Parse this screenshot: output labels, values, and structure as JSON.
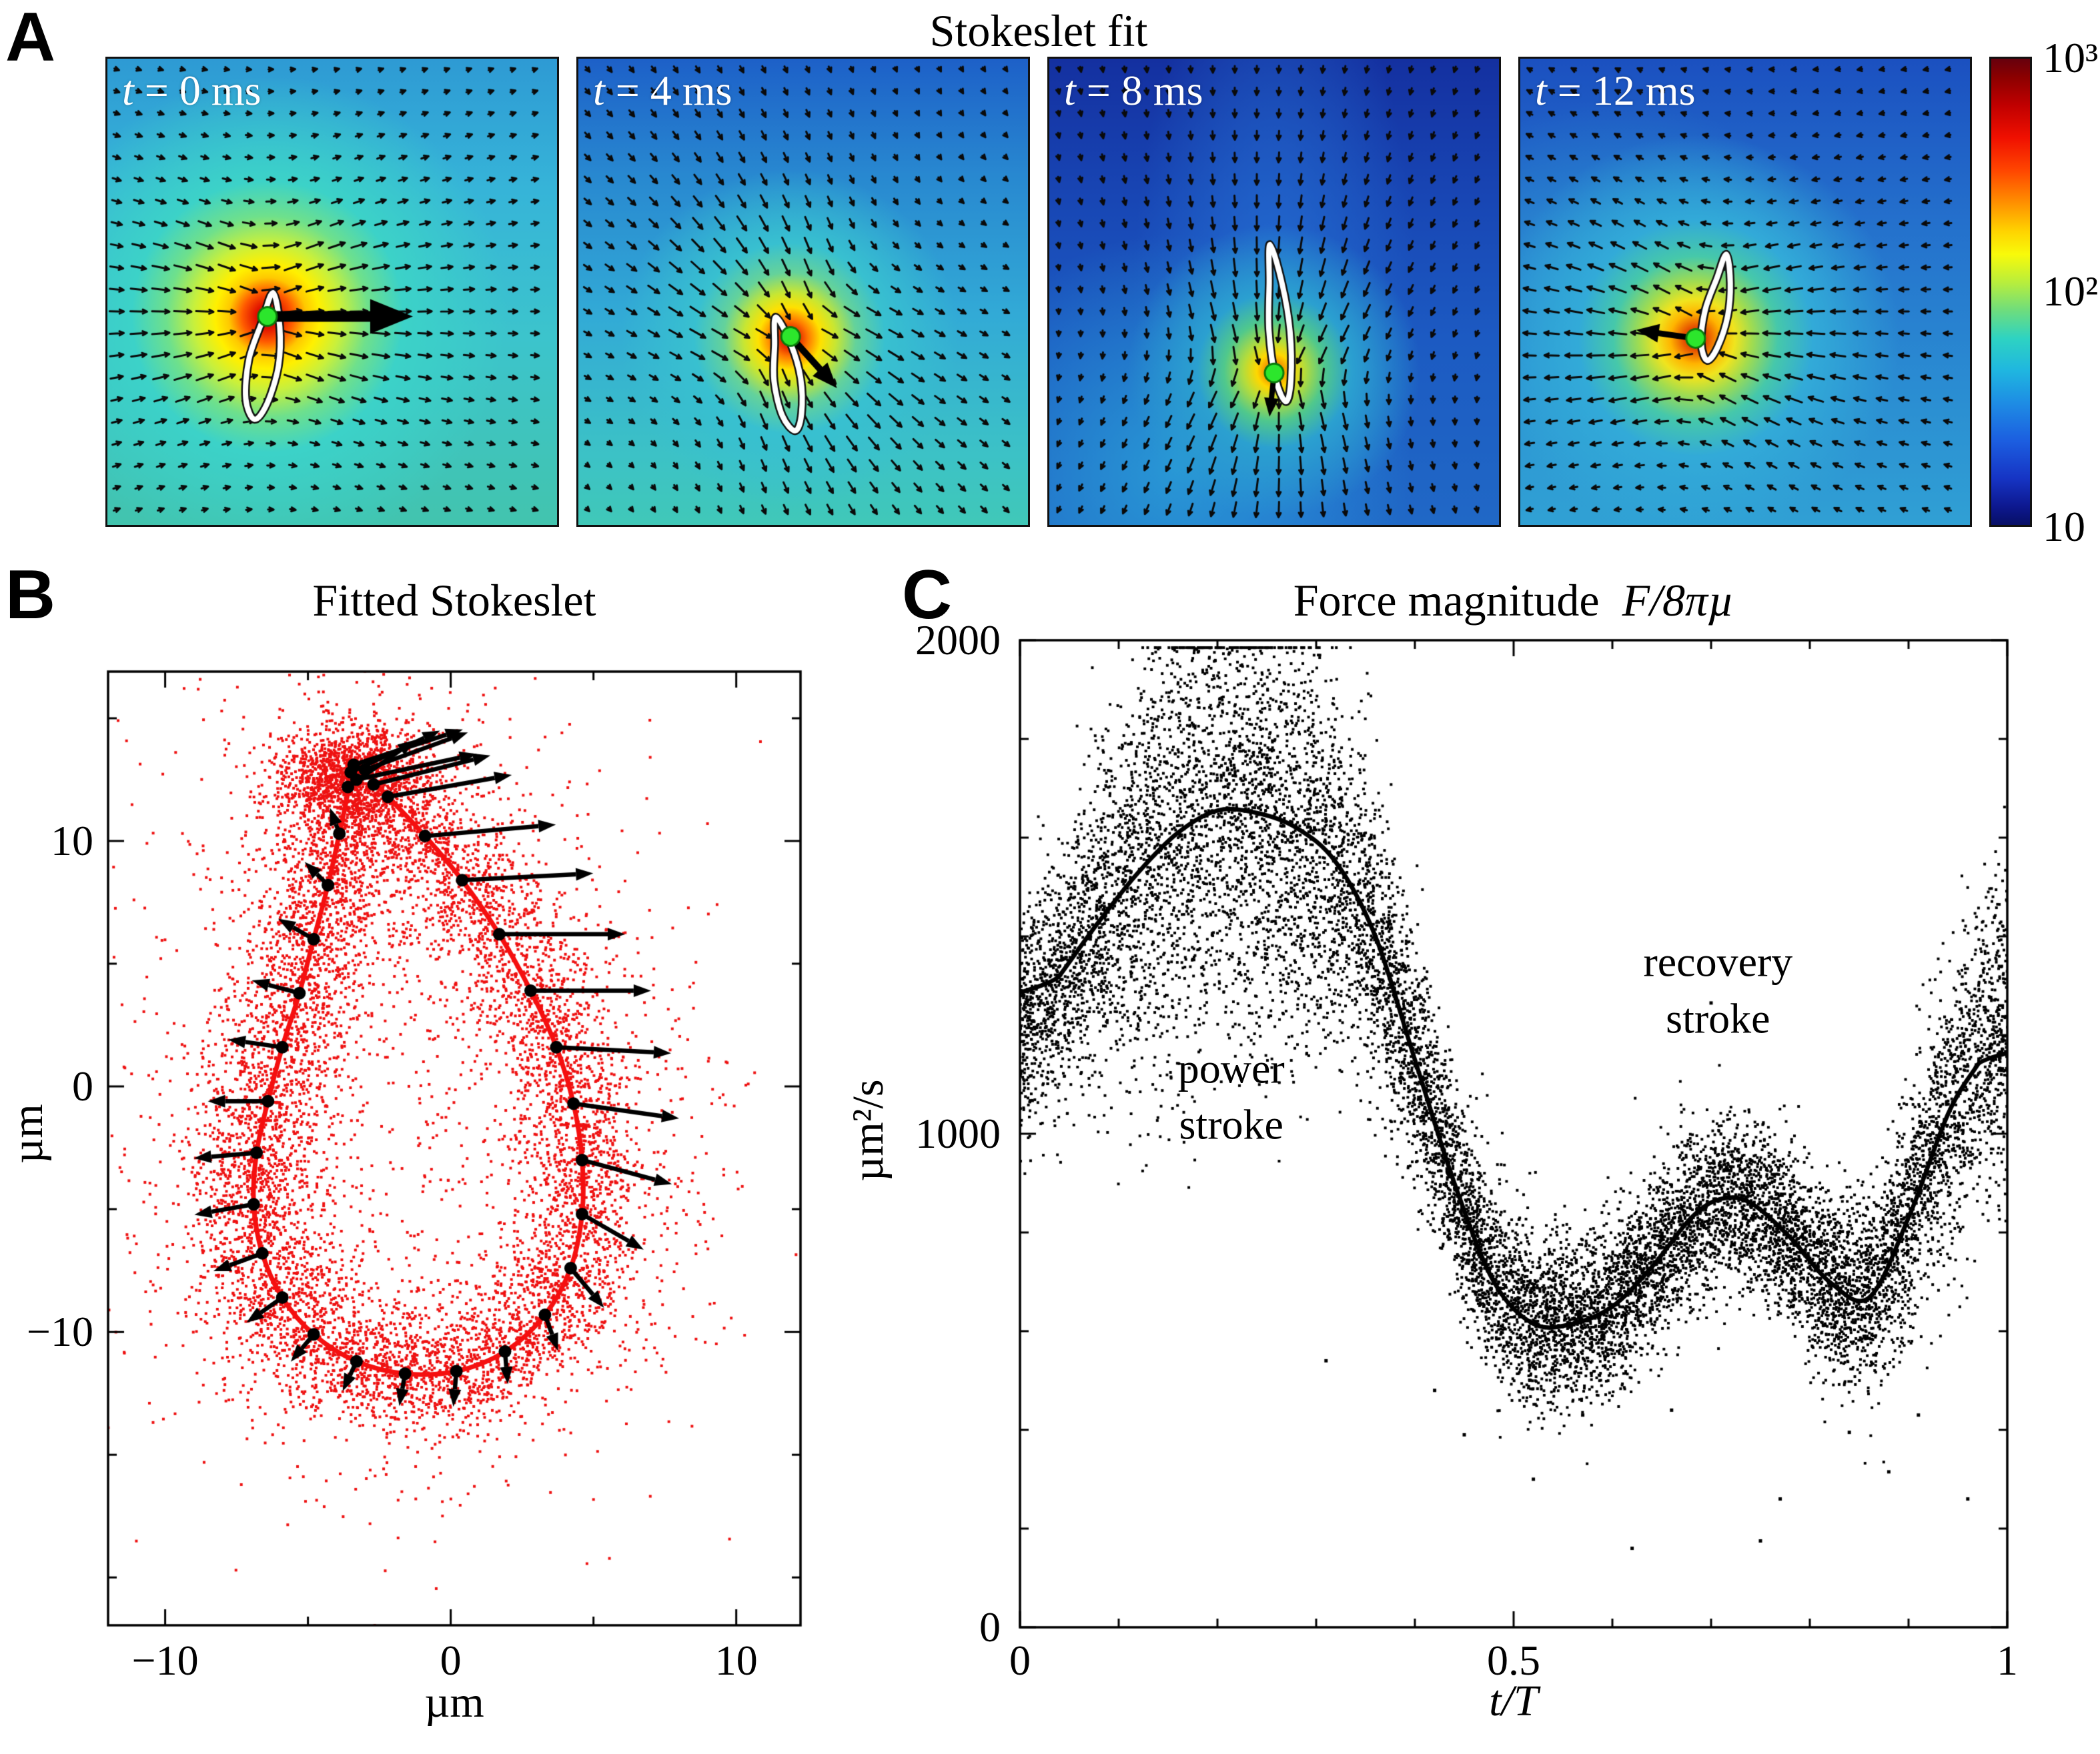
{
  "panel_a": {
    "label": "A",
    "title": "Stokeslet fit",
    "tiles": [
      {
        "t": "t",
        "rest": " = 0 ms",
        "bg": "radial-gradient(circle at 35.6% 55.3%, #a00000 0%, #e01000 3%, #ff5a00 6.5%, #ffc800 10%, #fff000 13.5%, #c8f03c 19%, #6ee08c 26%, #3cd2c8 35%, rgba(53,175,216,0) 62%), linear-gradient(180deg, #2e9ad4 0%, #36b4d8 28%, #3cc4cc 60%, #42c4ae 100%)"
      },
      {
        "t": "t",
        "rest": " = 4 ms",
        "bg": "radial-gradient(circle at 47% 60%, #b40000 0%, #e62800 2.5%, #ff7800 5%, #ffe100 8.5%, #c8e632 12.5%, #64d29b 18%, #38c0d0 26%, rgba(48,155,214,0) 46%), linear-gradient(180deg, #1d60c8 0%, #2888d0 25%, #32aad6 55%, #3cc2c6 85%, #40c8b8 100%)"
      },
      {
        "t": "t",
        "rest": " = 8 ms",
        "bg": "radial-gradient(circle at 50% 67%, #c83c00 0%, #f08c00 2%, #ffd700 4.5%, #b4dc3c 8%, #50c88c 13%, #2ba0d0 20%, rgba(32,110,200,0) 38%), radial-gradient(circle at 28% 88%, rgba(42,160,216,0.85) 0%, rgba(42,160,216,0) 45%), radial-gradient(45% 120% at 50% 55%, rgba(36,110,210,0.9) 0%, rgba(36,110,210,0) 70%), linear-gradient(180deg, #1430a0 0%, #1846b4 30%, #1c5ac2 60%, #2068c6 100%)"
      },
      {
        "t": "t",
        "rest": " = 12 ms",
        "bg": "radial-gradient(circle at 39% 60%, #be1400 0%, #e65000 3%, #ffb400 6.5%, #f0e41e 10%, #a0dc50 14.5%, #46c8aa 21%, #32aad8 30%, rgba(42,140,210,0) 52%), radial-gradient(circle at 22% 58%, rgba(50,170,215,0.7) 0%, rgba(50,170,215,0) 52%), linear-gradient(180deg, #1b50c0 0%, #2470cc 35%, #2a8cd2 70%, #30a0d4 100%)"
      }
    ],
    "colorbar": {
      "labels": [
        "10³",
        "10²",
        "10"
      ],
      "css": "linear-gradient(180deg,#66000d 0%,#8c0000 4%,#c00000 10%,#f01000 17%,#ff4600 24%,#ff9100 31%,#ffd300 37%,#f8fa0a 42%,#b8ee3c 48%,#6edd7d 54%,#2ed3c2 60%,#1fb6e0 67%,#1e8ce4 74%,#1c5ee0 82%,#1634c4 90%,#0d1890 96%,#070f66 100%)"
    }
  },
  "panel_b": {
    "label": "B",
    "title": "Fitted Stokeslet",
    "xlabel": "µm",
    "ylabel": "µm"
  },
  "panel_c": {
    "label": "C",
    "title_text": "Force magnitude",
    "title_math": "F/8πµ",
    "xlabel_math": "t/T",
    "ylabel": "µm²/s"
  },
  "chart_data": [
    {
      "id": "panel_a",
      "type": "heatmap",
      "title": "Stokeslet fit",
      "subtype": "velocity field magnitude (jet colormap, log scale) with quiver arrows",
      "colorbar": {
        "scale": "log",
        "min": 10,
        "max": 1000,
        "tick_labels": [
          "10³",
          "10²",
          "10"
        ]
      },
      "panels": [
        {
          "label": "t = 0 ms",
          "force_dir_deg": 0,
          "core_frac": [
            0.356,
            0.553
          ],
          "big_arrow": {
            "len": 150,
            "lw": 16,
            "head_l": 64,
            "head_w": 52
          },
          "outline": {
            "cx": 234,
            "cy": 452,
            "sx": 52,
            "sy": 102,
            "rot": 8
          }
        },
        {
          "label": "t = 4 ms",
          "force_dir_deg": 48,
          "core_frac": [
            0.472,
            0.596
          ],
          "big_arrow": {
            "len": 62,
            "lw": 10,
            "head_l": 38,
            "head_w": 30
          },
          "outline": {
            "cx": 312,
            "cy": 478,
            "sx": 46,
            "sy": 92,
            "rot": -10
          }
        },
        {
          "label": "t = 8 ms",
          "force_dir_deg": 96,
          "core_frac": [
            0.5,
            0.674
          ],
          "big_arrow": {
            "len": 34,
            "lw": 8,
            "head_l": 28,
            "head_w": 22
          },
          "outline": {
            "cx": 344,
            "cy": 404,
            "sx": 36,
            "sy": 126,
            "rot": -6
          }
        },
        {
          "label": "t = 12 ms",
          "force_dir_deg": 188,
          "core_frac": [
            0.39,
            0.6
          ],
          "big_arrow": {
            "len": 52,
            "lw": 9,
            "head_l": 34,
            "head_w": 28
          },
          "outline": {
            "cx": 294,
            "cy": 378,
            "sx": 40,
            "sy": 86,
            "rot": 10
          }
        }
      ]
    },
    {
      "id": "panel_b",
      "type": "scatter",
      "title": "Fitted Stokeslet",
      "xlabel": "µm",
      "ylabel": "µm",
      "xlim": [
        -12,
        12.25
      ],
      "ylim": [
        -21.95,
        16.9
      ],
      "xticks": {
        "major": [
          -10,
          0,
          10
        ],
        "labels": [
          "−10",
          "0",
          "10"
        ],
        "minor": [
          -5,
          5
        ]
      },
      "yticks": {
        "major": [
          -10,
          0,
          10
        ],
        "labels": [
          "−10",
          "0",
          "10"
        ],
        "minor": [
          -20,
          -15,
          -5,
          5,
          15
        ]
      },
      "scatter_color": "#ee1111",
      "curve_color": "#f50f0f",
      "n_points": 9000,
      "loop_xy": [
        [
          -3.5,
          13.3
        ],
        [
          -2.2,
          11.8
        ],
        [
          -0.9,
          10.2
        ],
        [
          0.4,
          8.4
        ],
        [
          1.7,
          6.2
        ],
        [
          2.8,
          3.9
        ],
        [
          3.7,
          1.6
        ],
        [
          4.3,
          -0.7
        ],
        [
          4.6,
          -3.0
        ],
        [
          4.6,
          -5.2
        ],
        [
          4.2,
          -7.4
        ],
        [
          3.3,
          -9.3
        ],
        [
          1.9,
          -10.8
        ],
        [
          0.2,
          -11.6
        ],
        [
          -1.6,
          -11.7
        ],
        [
          -3.3,
          -11.2
        ],
        [
          -4.8,
          -10.1
        ],
        [
          -5.9,
          -8.6
        ],
        [
          -6.6,
          -6.8
        ],
        [
          -6.9,
          -4.8
        ],
        [
          -6.8,
          -2.7
        ],
        [
          -6.4,
          -0.6
        ],
        [
          -5.9,
          1.6
        ],
        [
          -5.3,
          3.8
        ],
        [
          -4.8,
          6.0
        ],
        [
          -4.3,
          8.2
        ],
        [
          -3.9,
          10.3
        ],
        [
          -3.6,
          12.0
        ]
      ],
      "arrows": [
        [
          -2.2,
          11.8,
          10,
          4.6
        ],
        [
          -0.9,
          10.2,
          5,
          4.8
        ],
        [
          0.4,
          8.4,
          3,
          4.8
        ],
        [
          1.7,
          6.2,
          0,
          4.6
        ],
        [
          2.8,
          3.9,
          0,
          4.4
        ],
        [
          3.7,
          1.6,
          -3,
          4.2
        ],
        [
          4.3,
          -0.7,
          -8,
          3.9
        ],
        [
          4.6,
          -3.0,
          -15,
          3.4
        ],
        [
          4.6,
          -5.2,
          -30,
          2.6
        ],
        [
          4.2,
          -7.4,
          -50,
          1.9
        ],
        [
          3.3,
          -9.3,
          -70,
          1.4
        ],
        [
          1.9,
          -10.8,
          -85,
          1.2
        ],
        [
          0.2,
          -11.6,
          -95,
          1.3
        ],
        [
          -1.6,
          -11.7,
          -100,
          1.2
        ],
        [
          -3.3,
          -11.2,
          -115,
          1.2
        ],
        [
          -4.8,
          -10.1,
          -130,
          1.3
        ],
        [
          -5.9,
          -8.6,
          215,
          1.6
        ],
        [
          -6.6,
          -6.8,
          200,
          1.9
        ],
        [
          -6.9,
          -4.8,
          190,
          2.2
        ],
        [
          -6.8,
          -2.7,
          185,
          2.3
        ],
        [
          -6.4,
          -0.6,
          180,
          2.2
        ],
        [
          -5.9,
          1.6,
          172,
          2.0
        ],
        [
          -5.3,
          3.8,
          165,
          1.8
        ],
        [
          -4.8,
          6.0,
          150,
          1.5
        ],
        [
          -4.3,
          8.2,
          135,
          1.2
        ],
        [
          -3.9,
          10.3,
          110,
          1.0
        ],
        [
          -3.6,
          12.2,
          35,
          3.0
        ],
        [
          -3.5,
          12.8,
          25,
          3.6
        ],
        [
          -3.4,
          13.1,
          18,
          4.2
        ],
        [
          -3.3,
          12.5,
          12,
          4.5
        ],
        [
          -3.0,
          12.9,
          20,
          4.0
        ],
        [
          -2.7,
          12.3,
          14,
          4.4
        ]
      ]
    },
    {
      "id": "panel_c",
      "type": "scatter",
      "title": "Force magnitude F/8πµ",
      "xlabel": "t/T",
      "ylabel": "µm²/s",
      "xlim": [
        0,
        1
      ],
      "ylim": [
        0,
        2000
      ],
      "xticks": {
        "major": [
          0,
          0.5,
          1
        ],
        "labels": [
          "0",
          "0.5",
          "1"
        ],
        "minor_step": 0.1
      },
      "yticks": {
        "major": [
          0,
          1000,
          2000
        ],
        "labels": [
          "0",
          "1000",
          "2000"
        ],
        "minor_step": 200
      },
      "scatter_color": "#000000",
      "curve_color": "#000000",
      "n_points": 12500,
      "curve": [
        [
          0,
          1210
        ],
        [
          0.04,
          1320
        ],
        [
          0.08,
          1430
        ],
        [
          0.12,
          1530
        ],
        [
          0.16,
          1610
        ],
        [
          0.2,
          1655
        ],
        [
          0.24,
          1650
        ],
        [
          0.28,
          1620
        ],
        [
          0.32,
          1550
        ],
        [
          0.36,
          1400
        ],
        [
          0.4,
          1150
        ],
        [
          0.44,
          900
        ],
        [
          0.48,
          700
        ],
        [
          0.52,
          615
        ],
        [
          0.56,
          615
        ],
        [
          0.6,
          650
        ],
        [
          0.64,
          730
        ],
        [
          0.68,
          830
        ],
        [
          0.71,
          868
        ],
        [
          0.74,
          860
        ],
        [
          0.78,
          790
        ],
        [
          0.82,
          700
        ],
        [
          0.86,
          668
        ],
        [
          0.9,
          830
        ],
        [
          0.94,
          1040
        ],
        [
          0.97,
          1140
        ],
        [
          1,
          1225
        ]
      ],
      "outliers": [
        [
          0.31,
          540
        ],
        [
          0.45,
          390
        ],
        [
          0.52,
          300
        ],
        [
          0.57,
          430
        ],
        [
          0.62,
          160
        ],
        [
          0.66,
          440
        ],
        [
          0.7,
          1265
        ],
        [
          0.75,
          175
        ],
        [
          0.77,
          260
        ],
        [
          0.84,
          395
        ],
        [
          0.88,
          315
        ],
        [
          0.91,
          430
        ],
        [
          0.96,
          260
        ],
        [
          0.42,
          480
        ]
      ],
      "annotations": [
        {
          "lines": [
            "power",
            "stroke"
          ],
          "t": 0.214,
          "v": 1075
        },
        {
          "lines": [
            "recovery",
            "stroke"
          ],
          "t": 0.707,
          "v": 1290
        }
      ]
    }
  ]
}
